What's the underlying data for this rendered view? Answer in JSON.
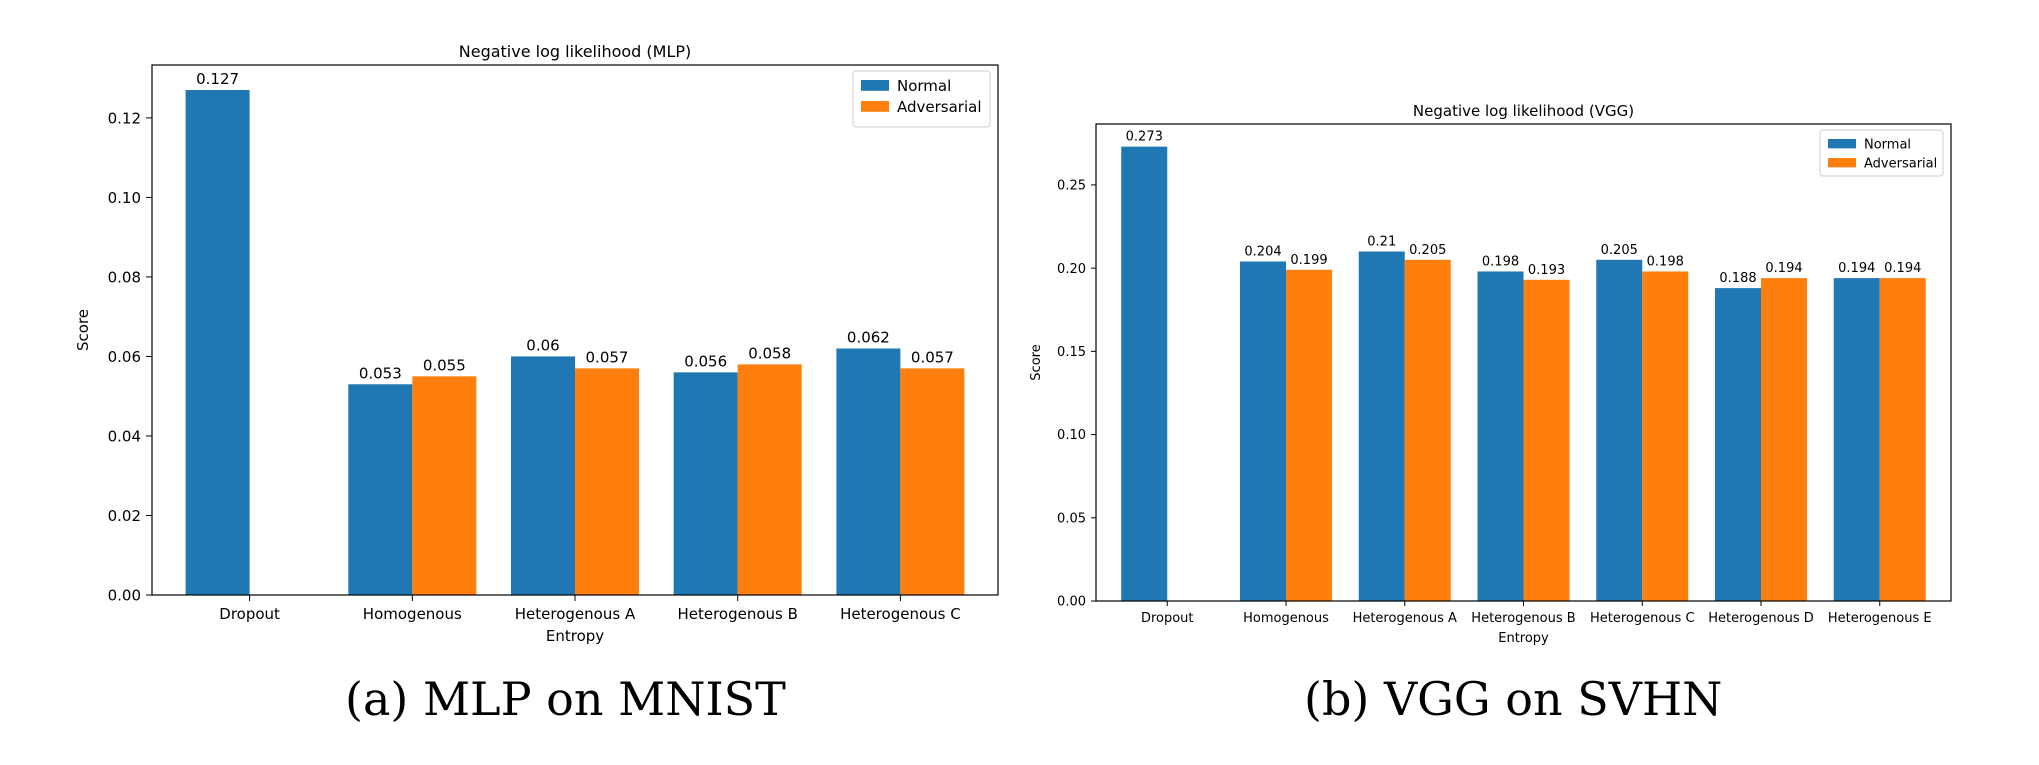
{
  "chart_data": [
    {
      "type": "bar",
      "title": "Negative log likelihood (MLP)",
      "xlabel": "Entropy",
      "ylabel": "Score",
      "categories": [
        "Dropout",
        "Homogenous",
        "Heterogenous A",
        "Heterogenous B",
        "Heterogenous C"
      ],
      "series": [
        {
          "name": "Normal",
          "color": "#1f77b4",
          "values": [
            0.127,
            0.053,
            0.06,
            0.056,
            0.062
          ],
          "labels": [
            "0.127",
            "0.053",
            "0.06",
            "0.056",
            "0.062"
          ]
        },
        {
          "name": "Adversarial",
          "color": "#ff7f0e",
          "values": [
            null,
            0.055,
            0.057,
            0.058,
            0.057
          ],
          "labels": [
            null,
            "0.055",
            "0.057",
            "0.058",
            "0.057"
          ]
        }
      ],
      "ylim": [
        0,
        0.1333
      ],
      "yticks": [
        0.0,
        0.02,
        0.04,
        0.06,
        0.08,
        0.1,
        0.12
      ],
      "ytick_labels": [
        "0.00",
        "0.02",
        "0.04",
        "0.06",
        "0.08",
        "0.10",
        "0.12"
      ],
      "grid": false,
      "legend": "top-right",
      "caption": "(a) MLP on MNIST"
    },
    {
      "type": "bar",
      "title": "Negative log likelihood (VGG)",
      "xlabel": "Entropy",
      "ylabel": "Score",
      "categories": [
        "Dropout",
        "Homogenous",
        "Heterogenous A",
        "Heterogenous B",
        "Heterogenous C",
        "Heterogenous D",
        "Heterogenous E"
      ],
      "series": [
        {
          "name": "Normal",
          "color": "#1f77b4",
          "values": [
            0.273,
            0.204,
            0.21,
            0.198,
            0.205,
            0.188,
            0.194
          ],
          "labels": [
            "0.273",
            "0.204",
            "0.21",
            "0.198",
            "0.205",
            "0.188",
            "0.194"
          ]
        },
        {
          "name": "Adversarial",
          "color": "#ff7f0e",
          "values": [
            null,
            0.199,
            0.205,
            0.193,
            0.198,
            0.194,
            0.194
          ],
          "labels": [
            null,
            "0.199",
            "0.205",
            "0.193",
            "0.198",
            "0.194",
            "0.194"
          ]
        }
      ],
      "ylim": [
        0,
        0.2866
      ],
      "yticks": [
        0.0,
        0.05,
        0.1,
        0.15,
        0.2,
        0.25
      ],
      "ytick_labels": [
        "0.00",
        "0.05",
        "0.10",
        "0.15",
        "0.20",
        "0.25"
      ],
      "grid": false,
      "legend": "top-right",
      "caption": "(b) VGG on SVHN"
    }
  ]
}
